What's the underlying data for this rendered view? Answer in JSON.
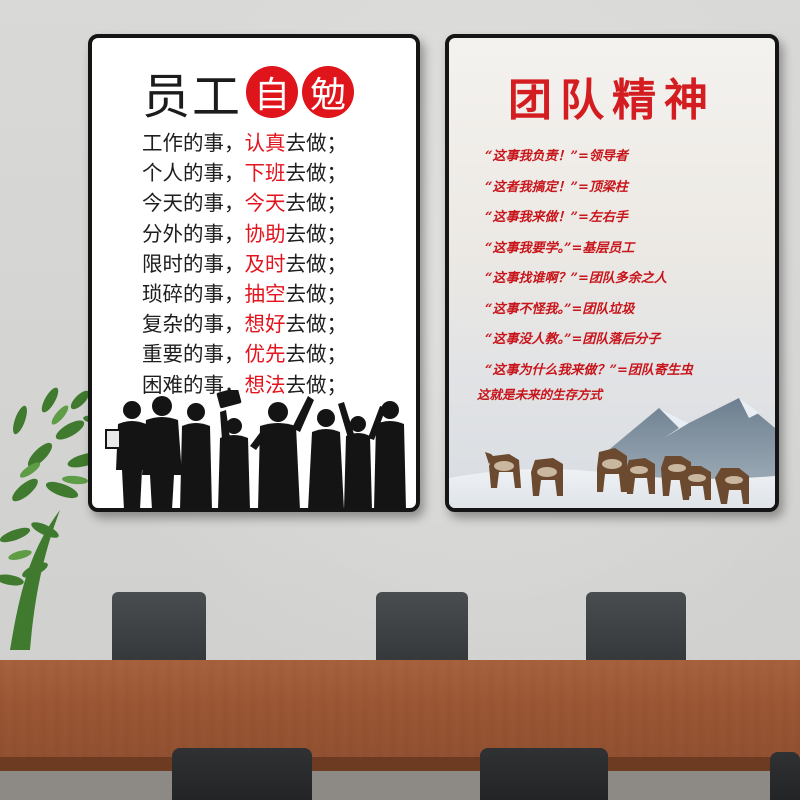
{
  "left_poster": {
    "title_plain": "员工",
    "title_circle_1": "自",
    "title_circle_2": "勉",
    "lines": [
      {
        "prefix": "工作的事，",
        "highlight": "认真",
        "suffix": "去做；"
      },
      {
        "prefix": "个人的事，",
        "highlight": "下班",
        "suffix": "去做；"
      },
      {
        "prefix": "今天的事，",
        "highlight": "今天",
        "suffix": "去做；"
      },
      {
        "prefix": "分外的事，",
        "highlight": "协助",
        "suffix": "去做；"
      },
      {
        "prefix": "限时的事，",
        "highlight": "及时",
        "suffix": "去做；"
      },
      {
        "prefix": "琐碎的事，",
        "highlight": "抽空",
        "suffix": "去做；"
      },
      {
        "prefix": "复杂的事，",
        "highlight": "想好",
        "suffix": "去做；"
      },
      {
        "prefix": "重要的事，",
        "highlight": "优先",
        "suffix": "去做；"
      },
      {
        "prefix": "困难的事，",
        "highlight": "想法",
        "suffix": "去做；"
      }
    ],
    "colors": {
      "highlight": "#e3141d",
      "text": "#1e1e1e",
      "circle": "#e0141b"
    }
  },
  "right_poster": {
    "title": "团队精神",
    "lines": [
      "“这事我负责！”=领导者",
      "“这者我搞定！”=顶梁柱",
      "“这事我来做！”=左右手",
      "“这事我要学。”=基层员工",
      "“这事找谁啊？”=团队多余之人",
      "“这事不怪我。”=团队垃圾",
      "“这事没人教。”=团队落后分子",
      "“这事为什么我来做？”=团队寄生虫"
    ],
    "footer": "这就是未来的生存方式",
    "colors": {
      "text": "#c8151b",
      "title": "#d31d20"
    }
  }
}
